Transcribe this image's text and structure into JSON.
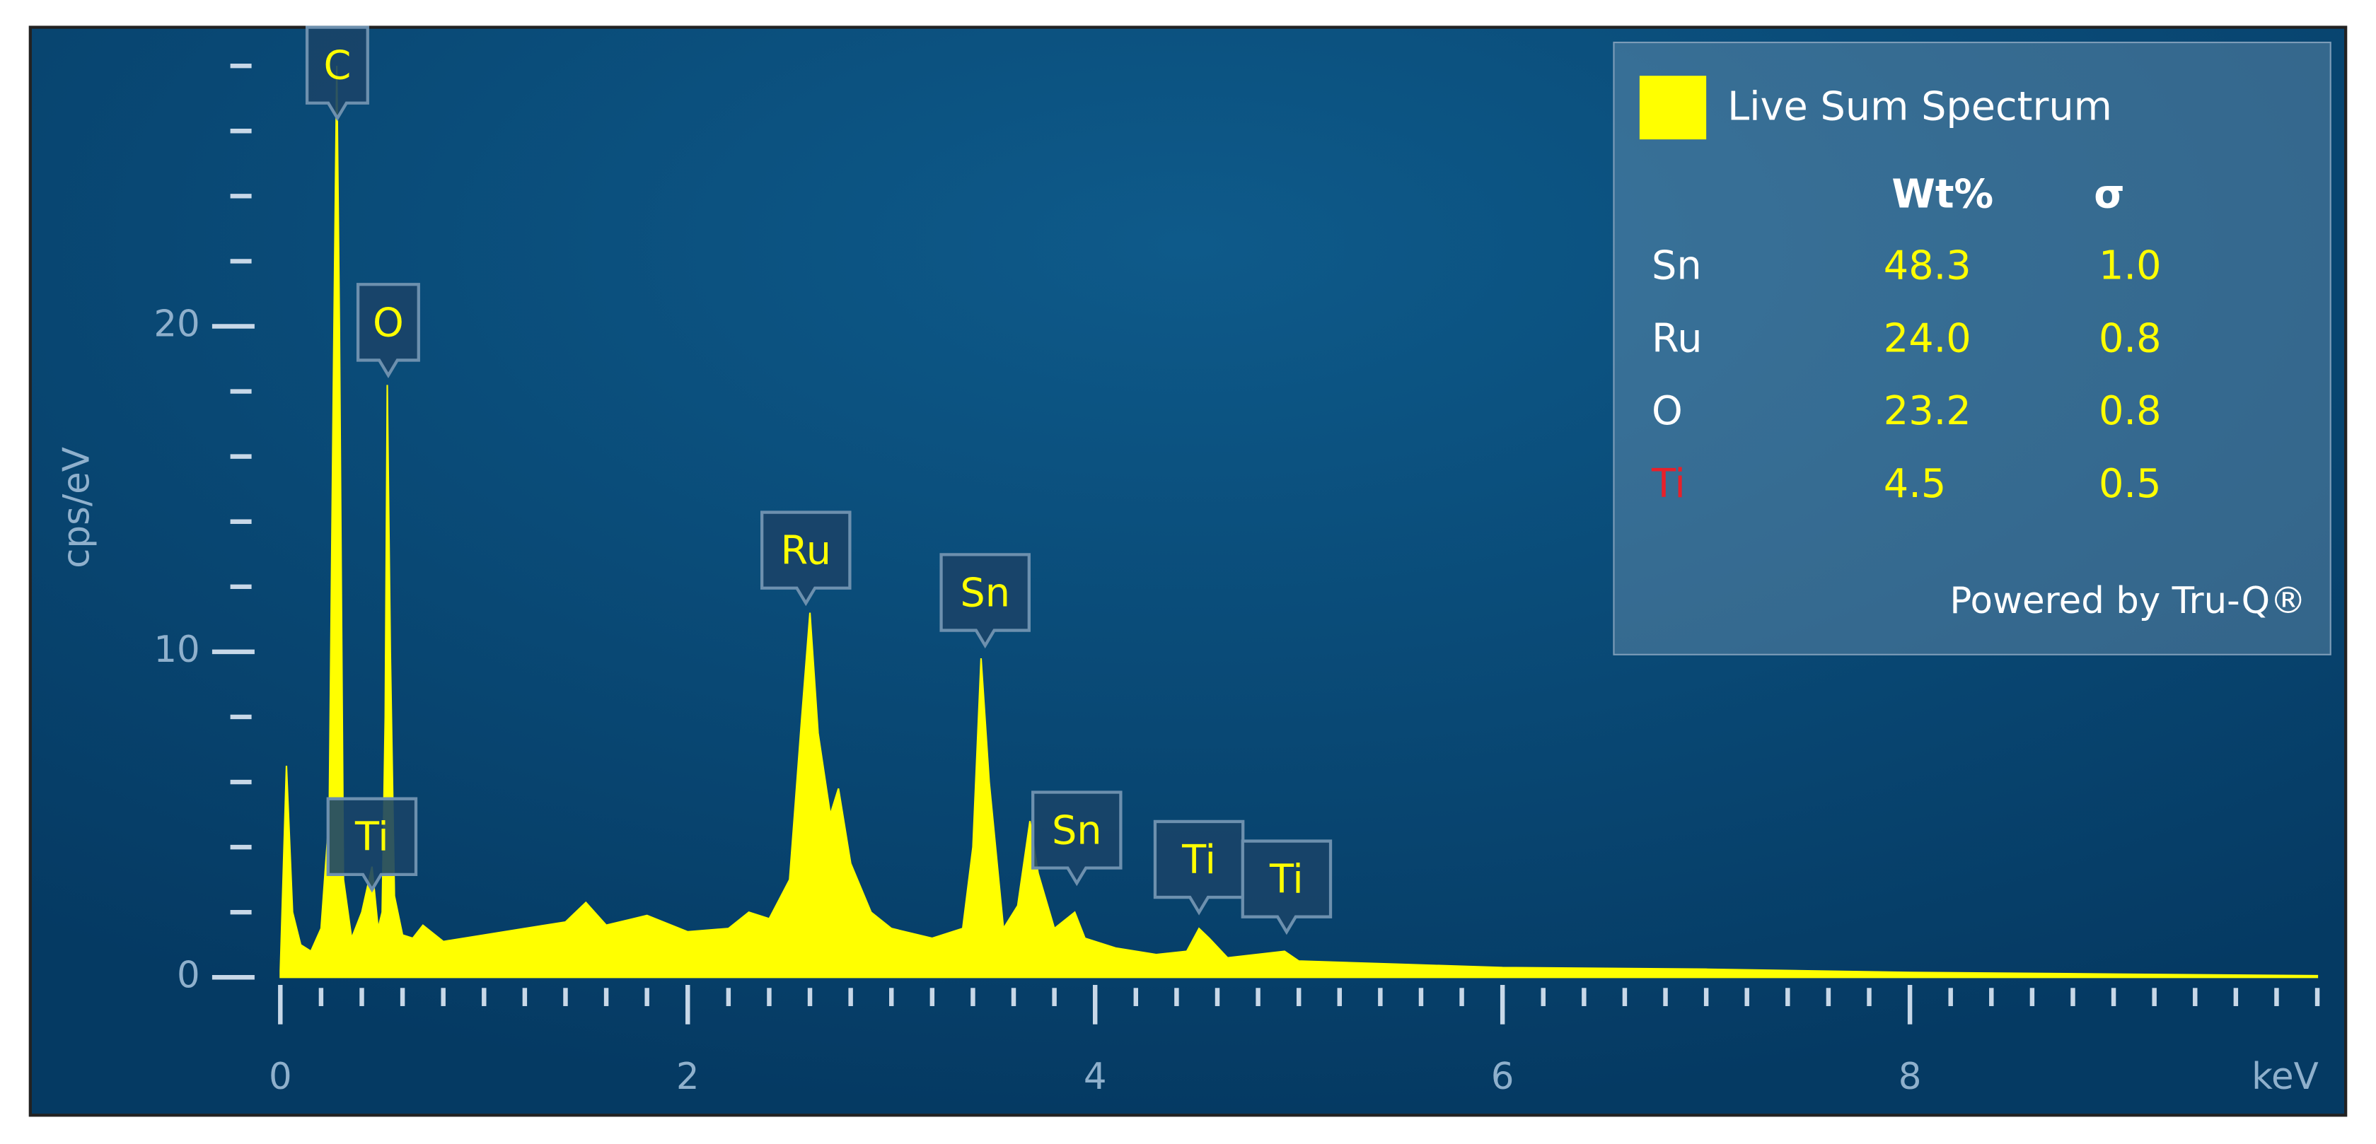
{
  "chart_data": {
    "type": "spectrum",
    "ylabel": "cps/eV",
    "xlabel": "keV",
    "xlim": [
      0,
      10.05
    ],
    "ylim": [
      0,
      29
    ],
    "xticks": [
      0,
      2,
      4,
      6,
      8
    ],
    "xminorticks": [
      0.2,
      0.4,
      0.6,
      0.8,
      1,
      1.2,
      1.4,
      1.6,
      1.8,
      2.2,
      2.4,
      2.6,
      2.8,
      3,
      3.2,
      3.4,
      3.6,
      3.8,
      4.2,
      4.4,
      4.6,
      4.8,
      5,
      5.2,
      5.4,
      5.6,
      5.8,
      6.2,
      6.4,
      6.6,
      6.8,
      7,
      7.2,
      7.4,
      7.6,
      7.8,
      8.2,
      8.4,
      8.6,
      8.8,
      9,
      9.2,
      9.4,
      9.6,
      9.8,
      10
    ],
    "yticks": [
      0,
      10,
      20
    ],
    "yminorticks": [
      2,
      4,
      6,
      8,
      12,
      14,
      16,
      18,
      22,
      24,
      26,
      28
    ],
    "x": [
      0,
      0.03,
      0.06,
      0.1,
      0.15,
      0.2,
      0.24,
      0.26,
      0.277,
      0.29,
      0.31,
      0.35,
      0.4,
      0.45,
      0.48,
      0.5,
      0.515,
      0.525,
      0.54,
      0.56,
      0.6,
      0.65,
      0.7,
      0.8,
      1.0,
      1.2,
      1.4,
      1.5,
      1.6,
      1.8,
      2.0,
      2.2,
      2.3,
      2.4,
      2.5,
      2.56,
      2.6,
      2.64,
      2.7,
      2.74,
      2.8,
      2.9,
      3.0,
      3.2,
      3.35,
      3.4,
      3.44,
      3.48,
      3.55,
      3.62,
      3.68,
      3.72,
      3.8,
      3.9,
      3.95,
      4.1,
      4.3,
      4.45,
      4.51,
      4.56,
      4.65,
      4.93,
      5.0,
      5.5,
      6,
      7,
      8,
      9,
      10
    ],
    "series": [
      {
        "name": "Live Sum Spectrum",
        "color": "#ffff00",
        "values": [
          0.2,
          6.5,
          2,
          1,
          0.8,
          1.5,
          5,
          18,
          28,
          20,
          3,
          1.2,
          2,
          3.4,
          1.5,
          2,
          8,
          18.2,
          10,
          2.5,
          1.3,
          1.2,
          1.6,
          1.1,
          1.3,
          1.5,
          1.7,
          2.3,
          1.6,
          1.9,
          1.4,
          1.5,
          2,
          1.8,
          3,
          8,
          11.2,
          7.5,
          5,
          5.8,
          3.5,
          2,
          1.5,
          1.2,
          1.5,
          4,
          9.8,
          6,
          1.5,
          2.2,
          4.8,
          3.2,
          1.5,
          2,
          1.2,
          0.9,
          0.7,
          0.8,
          1.5,
          1.2,
          0.6,
          0.8,
          0.5,
          0.4,
          0.3,
          0.25,
          0.15,
          0.1,
          0.05
        ]
      }
    ],
    "annotations": [
      {
        "label": "C",
        "x": 0.28,
        "y": 26.3
      },
      {
        "label": "O",
        "x": 0.53,
        "y": 18.4
      },
      {
        "label": "Ti",
        "x": 0.45,
        "y": 2.6
      },
      {
        "label": "Ru",
        "x": 2.58,
        "y": 11.4
      },
      {
        "label": "Sn",
        "x": 3.46,
        "y": 10.1
      },
      {
        "label": "Sn",
        "x": 3.91,
        "y": 2.8
      },
      {
        "label": "Ti",
        "x": 4.51,
        "y": 1.9
      },
      {
        "label": "Ti",
        "x": 4.94,
        "y": 1.3
      }
    ],
    "quant": {
      "headers": [
        "Wt%",
        "σ"
      ],
      "rows": [
        {
          "element": "Sn",
          "color": "#ffffff",
          "wt": "48.3",
          "sigma": "1.0"
        },
        {
          "element": "Ru",
          "color": "#ffffff",
          "wt": "24.0",
          "sigma": "0.8"
        },
        {
          "element": "O",
          "color": "#ffffff",
          "wt": "23.2",
          "sigma": "0.8"
        },
        {
          "element": "Ti",
          "color": "#e8202a",
          "wt": "4.5",
          "sigma": "0.5"
        }
      ],
      "footer": "Powered by Tru-Q®"
    }
  }
}
